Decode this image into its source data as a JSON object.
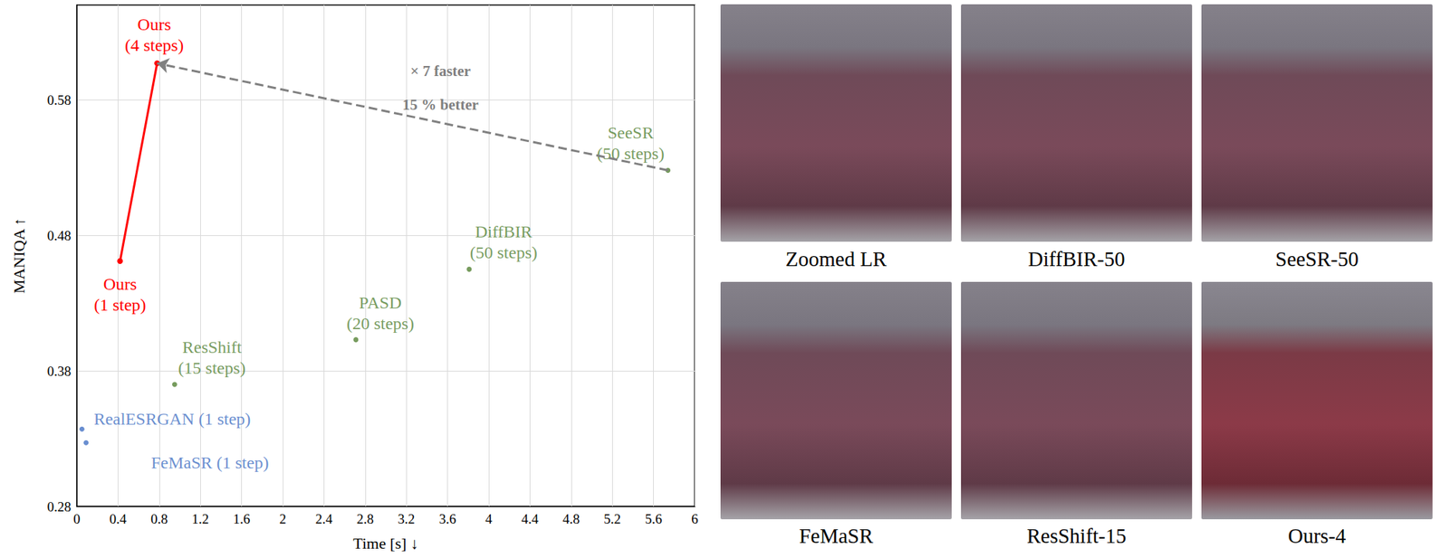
{
  "chart_data": {
    "type": "scatter",
    "x_label": "Time [s] ↓",
    "y_label": "MANIQA ↑",
    "xlim": [
      0,
      6
    ],
    "xticks": [
      0,
      0.4,
      0.8,
      1.2,
      1.6,
      2,
      2.4,
      2.8,
      3.2,
      3.6,
      4,
      4.4,
      4.8,
      5.2,
      5.6,
      6
    ],
    "ylim": [
      0.28,
      0.65
    ],
    "yticks": [
      0.28,
      0.38,
      0.48,
      0.58
    ],
    "grid": true,
    "series": [
      {
        "type": "line",
        "color": "#ff0000",
        "marker": "circle",
        "line_style": "solid",
        "x": [
          0.42,
          0.78
        ],
        "values": [
          0.461,
          0.607
        ],
        "point_labels": [
          "Ours\n(1 step)",
          "Ours\n(4 steps)"
        ]
      },
      {
        "type": "scatter",
        "color": "#548235",
        "marker": "circle",
        "x": [
          0.95,
          2.71,
          3.81,
          5.74
        ],
        "values": [
          0.37,
          0.403,
          0.455,
          0.528
        ],
        "point_labels": [
          "ResShift\n(15 steps)",
          "PASD\n(20 steps)",
          "DiffBIR\n(50 steps)",
          "SeeSR\n(50 steps)"
        ]
      },
      {
        "type": "scatter",
        "color": "#4472c4",
        "marker": "circle",
        "x": [
          0.05,
          0.09
        ],
        "values": [
          0.337,
          0.327
        ],
        "point_labels": [
          "RealESRGAN (1 step)",
          "FeMaSR (1 step)"
        ]
      }
    ],
    "arrow": {
      "x": [
        5.74,
        0.78
      ],
      "y": [
        0.528,
        0.607
      ],
      "color": "#808080",
      "line_style": "dashed",
      "texts": [
        "× 7 faster",
        "15 % better"
      ]
    }
  },
  "image_panels": {
    "captions": [
      "Zoomed LR",
      "DiffBIR-50",
      "SeeSR-50",
      "FeMaSR",
      "ResShift-15",
      "Ours-4"
    ]
  }
}
